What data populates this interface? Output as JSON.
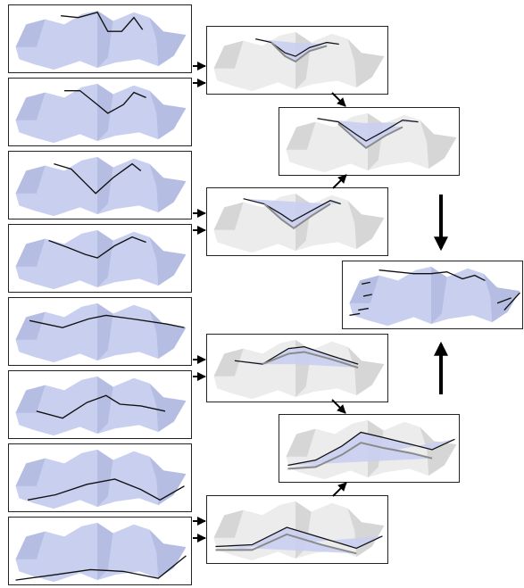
{
  "colors": {
    "surface_fill": "#c9cfef",
    "surface_shadow": "#a9b0d8",
    "ghost_fill": "#ececec",
    "ghost_shadow": "#c8c8c8",
    "dark_fill": "#8a8a8a",
    "curve": "#111111",
    "frame": "#222222"
  },
  "stages": [
    {
      "id": "input",
      "count": 8,
      "view": "full-surface-with-cross-section"
    },
    {
      "id": "pair-render",
      "count": 4,
      "view": "ghosted-surface-with-strip"
    },
    {
      "id": "merge",
      "count": 2,
      "view": "ghosted-surface-with-merged-strip"
    },
    {
      "id": "result",
      "count": 1,
      "view": "full-surface-with-sparse-curves"
    }
  ]
}
